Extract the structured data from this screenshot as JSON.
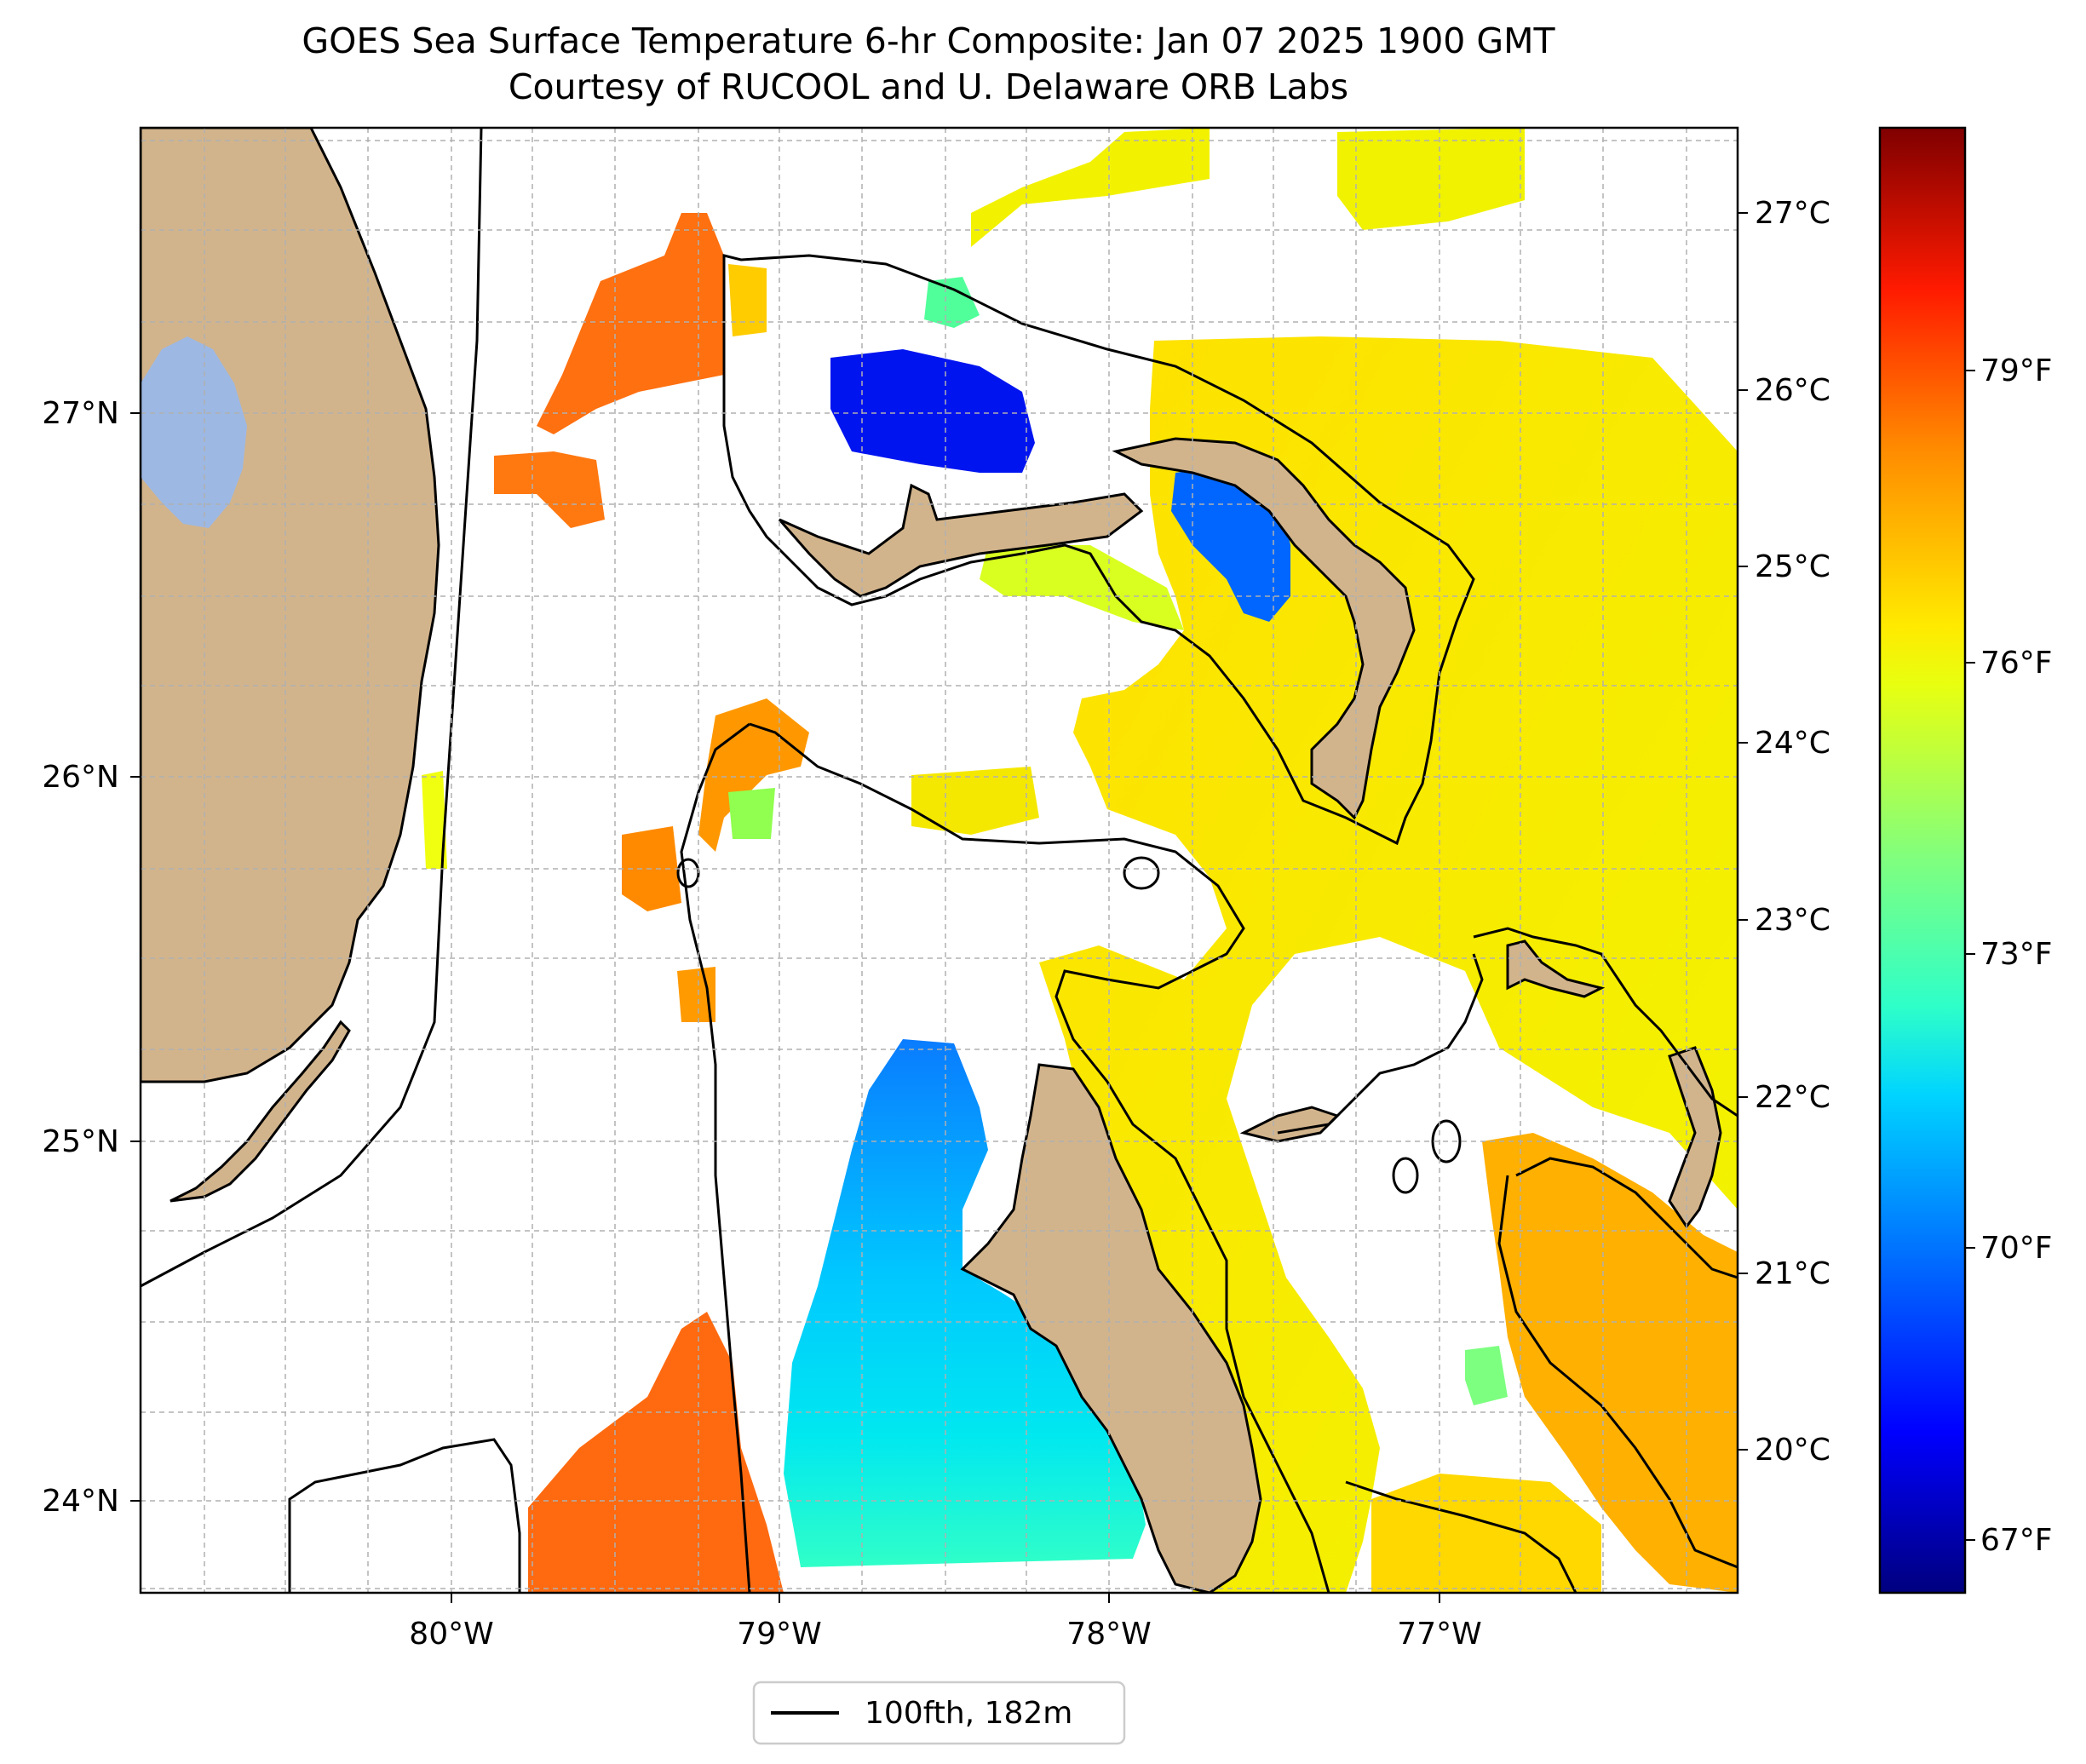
{
  "title": "GOES Sea Surface Temperature 6-hr Composite: Jan 07 2025 1900 GMT",
  "subtitle": "Courtesy of RUCOOL and U. Delaware ORB Labs",
  "map": {
    "lon_ticks": [
      "80°W",
      "79°W",
      "78°W",
      "77°W"
    ],
    "lat_ticks": [
      "27°N",
      "26°N",
      "25°N",
      "24°N"
    ]
  },
  "colorbar": {
    "celsius_ticks": [
      "27°C",
      "26°C",
      "25°C",
      "24°C",
      "23°C",
      "22°C",
      "21°C",
      "20°C"
    ],
    "fahrenheit_ticks": [
      "79°F",
      "76°F",
      "73°F",
      "70°F",
      "67°F"
    ],
    "colors": [
      "#00007f",
      "#0000ff",
      "#007fff",
      "#00e5ff",
      "#2effc9",
      "#7fff7f",
      "#c9ff2e",
      "#ffea00",
      "#ffae00",
      "#ff5500",
      "#ff0000",
      "#7f0000"
    ]
  },
  "legend": {
    "label": "100fth, 182m"
  },
  "colors": {
    "land": "#d2b48c",
    "lake": "#9db8e3",
    "isobath": "#000000"
  }
}
